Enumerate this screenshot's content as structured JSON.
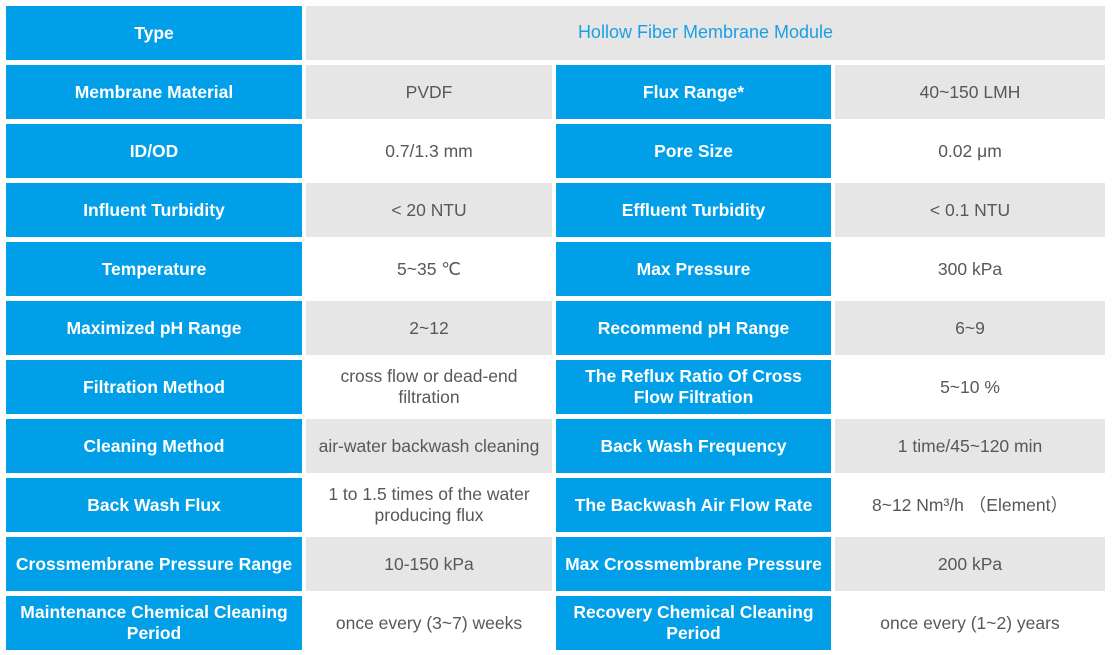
{
  "colors": {
    "cell_blue": "#019FE8",
    "value_shaded_gray": "#E6E6E6",
    "value_text": "#595757",
    "header_value_text": "#1C9FE3"
  },
  "header": {
    "label": "Type",
    "value": "Hollow Fiber Membrane Module"
  },
  "rows": [
    {
      "label1": "Membrane Material",
      "value1": "PVDF",
      "label2": "Flux Range*",
      "value2": "40~150 LMH"
    },
    {
      "label1": "ID/OD",
      "value1": "0.7/1.3 mm",
      "label2": "Pore Size",
      "value2": "0.02 μm"
    },
    {
      "label1": "Influent Turbidity",
      "value1": "< 20 NTU",
      "label2": "Effluent Turbidity",
      "value2": "< 0.1 NTU"
    },
    {
      "label1": "Temperature",
      "value1": "5~35 ℃",
      "label2": "Max Pressure",
      "value2": "300 kPa"
    },
    {
      "label1": "Maximized pH Range",
      "value1": "2~12",
      "label2": "Recommend pH Range",
      "value2": "6~9"
    },
    {
      "label1": "Filtration Method",
      "value1": "cross flow or dead-end filtration",
      "label2": "The Reflux Ratio Of Cross Flow Filtration",
      "value2": "5~10 %"
    },
    {
      "label1": "Cleaning Method",
      "value1": "air-water backwash cleaning",
      "label2": "Back Wash Frequency",
      "value2": "1 time/45~120 min"
    },
    {
      "label1": "Back Wash Flux",
      "value1": "1 to 1.5 times of the water producing flux",
      "label2": "The Backwash Air Flow Rate",
      "value2": "8~12 Nm³/h （Element）"
    },
    {
      "label1": "Crossmembrane Pressure Range",
      "value1": "10-150 kPa",
      "label2": "Max Crossmembrane Pressure",
      "value2": "200 kPa"
    },
    {
      "label1": "Maintenance Chemical Cleaning Period",
      "value1": "once every (3~7) weeks",
      "label2": "Recovery Chemical Cleaning Period",
      "value2": "once every (1~2) years"
    }
  ]
}
